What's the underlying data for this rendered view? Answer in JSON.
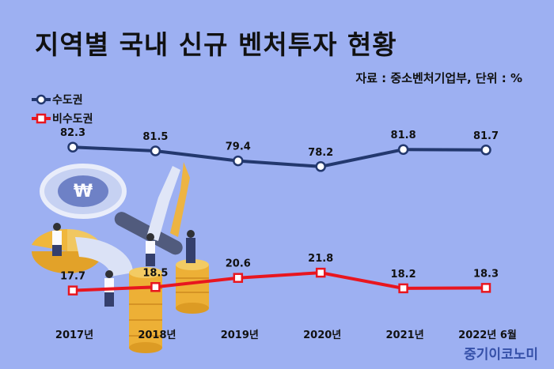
{
  "title": "지역별 국내 신규 벤처투자 현황",
  "source_note": "자료 : 중소벤처기업부, 단위 : %",
  "brand": "중기이코노미",
  "colors": {
    "background": "#9db0f2",
    "series_1": "#23386e",
    "series_2": "#e8161f"
  },
  "chart_data": {
    "type": "line",
    "title": "지역별 국내 신규 벤처투자 현황",
    "unit": "%",
    "categories": [
      "2017년",
      "2018년",
      "2019년",
      "2020년",
      "2021년",
      "2022년 6월"
    ],
    "series": [
      {
        "name": "수도권",
        "values": [
          82.3,
          81.5,
          79.4,
          78.2,
          81.8,
          81.7
        ],
        "color": "#23386e",
        "marker": "circle"
      },
      {
        "name": "비수도권",
        "values": [
          17.7,
          18.5,
          20.6,
          21.8,
          18.2,
          18.3
        ],
        "color": "#e8161f",
        "marker": "square"
      }
    ],
    "legend_position": "top-left",
    "grid": false
  }
}
